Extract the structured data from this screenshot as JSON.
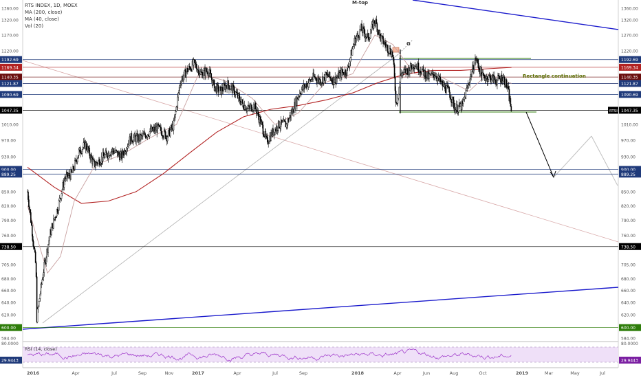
{
  "legend": {
    "symbol": "RTS INDEX, 1D, MOEX",
    "ma200": "MA (200, close)",
    "ma40": "MA (40, close)",
    "vol": "Vol (20)"
  },
  "annotations": {
    "mtop": "M-top",
    "g": "G",
    "rect": "Rectangle continuation"
  },
  "rsi": {
    "label": "RSI (14, close)",
    "upper": "80.0000",
    "value_label": "29.9443",
    "value": 29.9443,
    "upper_level": 70,
    "lower_level": 30
  },
  "colors": {
    "price": "#000000",
    "ma200": "#b22222",
    "ma40": "#c8a0a0",
    "trend_blue": "#1a1acc",
    "support_green": "#2e7d0a",
    "level_navy": "#1f3a7a",
    "rsi_line": "#9b30c8",
    "rsi_band": "#efe0f8"
  },
  "chart_data": {
    "type": "candlestick",
    "title": "RTS INDEX, 1D, MOEX",
    "y_scale": "log",
    "ylim": [
      584,
      1370
    ],
    "time_labels": [
      "2016",
      "Apr",
      "Jul",
      "Sep",
      "Nov",
      "2017",
      "Apr",
      "Jul",
      "Sep",
      "2018",
      "Apr",
      "Jun",
      "Aug",
      "Oct",
      "2019",
      "Mar",
      "May",
      "Jul"
    ],
    "y_ticks_right": [
      "1360.00",
      "1320.00",
      "1270.00",
      "1220.00",
      "1192.69",
      "1169.34",
      "1140.35",
      "1121.96",
      "1121.87",
      "1090.69",
      "1047.35",
      "1010.00",
      "970.00",
      "930.00",
      "900.00",
      "889.25",
      "850.00",
      "820.00",
      "790.00",
      "760.00",
      "738.50",
      "705.00",
      "680.00",
      "660.00",
      "640.00",
      "620.00",
      "600.00",
      "584.00"
    ],
    "y_ticks_left": [
      "1360.00",
      "1320.00",
      "1270.00",
      "1220.00",
      "1192.69",
      "1169.34",
      "1140.35",
      "1121.96",
      "1121.87",
      "1090.69",
      "1047.35",
      "1010.00",
      "970.00",
      "930.00",
      "900.00",
      "889.25",
      "850.00",
      "820.00",
      "790.00",
      "760.00",
      "738.50",
      "705.00",
      "680.00",
      "660.00",
      "640.00",
      "620.00",
      "600.00",
      "584.00"
    ],
    "price_path": [
      [
        "2016-01-01",
        850
      ],
      [
        "2016-01-20",
        700
      ],
      [
        "2016-01-22",
        615
      ],
      [
        "2016-02-05",
        690
      ],
      [
        "2016-02-20",
        760
      ],
      [
        "2016-03-10",
        820
      ],
      [
        "2016-03-25",
        880
      ],
      [
        "2016-04-10",
        890
      ],
      [
        "2016-04-25",
        940
      ],
      [
        "2016-05-10",
        960
      ],
      [
        "2016-05-30",
        910
      ],
      [
        "2016-06-20",
        930
      ],
      [
        "2016-07-10",
        945
      ],
      [
        "2016-07-30",
        930
      ],
      [
        "2016-08-20",
        975
      ],
      [
        "2016-09-10",
        975
      ],
      [
        "2016-09-30",
        990
      ],
      [
        "2016-10-20",
        1000
      ],
      [
        "2016-11-10",
        980
      ],
      [
        "2016-11-25",
        1010
      ],
      [
        "2016-12-10",
        1130
      ],
      [
        "2016-12-25",
        1160
      ],
      [
        "2017-01-10",
        1180
      ],
      [
        "2017-01-25",
        1150
      ],
      [
        "2017-02-10",
        1160
      ],
      [
        "2017-02-25",
        1110
      ],
      [
        "2017-03-10",
        1100
      ],
      [
        "2017-03-25",
        1120
      ],
      [
        "2017-04-10",
        1100
      ],
      [
        "2017-04-25",
        1070
      ],
      [
        "2017-05-10",
        1050
      ],
      [
        "2017-05-25",
        1060
      ],
      [
        "2017-06-10",
        1010
      ],
      [
        "2017-06-22",
        965
      ],
      [
        "2017-07-05",
        990
      ],
      [
        "2017-07-20",
        1010
      ],
      [
        "2017-08-05",
        1010
      ],
      [
        "2017-08-20",
        1050
      ],
      [
        "2017-09-05",
        1100
      ],
      [
        "2017-09-20",
        1120
      ],
      [
        "2017-10-05",
        1140
      ],
      [
        "2017-10-20",
        1130
      ],
      [
        "2017-11-05",
        1145
      ],
      [
        "2017-11-20",
        1130
      ],
      [
        "2017-12-05",
        1150
      ],
      [
        "2017-12-20",
        1160
      ],
      [
        "2018-01-05",
        1250
      ],
      [
        "2018-01-20",
        1290
      ],
      [
        "2018-02-05",
        1260
      ],
      [
        "2018-02-20",
        1320
      ],
      [
        "2018-03-05",
        1260
      ],
      [
        "2018-03-20",
        1230
      ],
      [
        "2018-04-01",
        1210
      ],
      [
        "2018-04-09",
        1060
      ],
      [
        "2018-04-20",
        1150
      ],
      [
        "2018-05-05",
        1160
      ],
      [
        "2018-05-20",
        1180
      ],
      [
        "2018-06-05",
        1160
      ],
      [
        "2018-06-20",
        1140
      ],
      [
        "2018-07-05",
        1150
      ],
      [
        "2018-07-20",
        1120
      ],
      [
        "2018-08-05",
        1100
      ],
      [
        "2018-08-20",
        1050
      ],
      [
        "2018-09-05",
        1060
      ],
      [
        "2018-09-20",
        1130
      ],
      [
        "2018-10-05",
        1195
      ],
      [
        "2018-10-20",
        1140
      ],
      [
        "2018-11-05",
        1140
      ],
      [
        "2018-11-20",
        1130
      ],
      [
        "2018-12-05",
        1140
      ],
      [
        "2018-12-15",
        1110
      ],
      [
        "2018-12-24",
        1047
      ]
    ],
    "ma200_path": [
      [
        "2016-01-01",
        905
      ],
      [
        "2016-03-01",
        860
      ],
      [
        "2016-05-01",
        825
      ],
      [
        "2016-07-01",
        830
      ],
      [
        "2016-09-01",
        850
      ],
      [
        "2016-11-01",
        890
      ],
      [
        "2017-01-01",
        940
      ],
      [
        "2017-03-01",
        990
      ],
      [
        "2017-05-01",
        1030
      ],
      [
        "2017-07-01",
        1050
      ],
      [
        "2017-09-01",
        1060
      ],
      [
        "2017-11-01",
        1075
      ],
      [
        "2018-01-01",
        1095
      ],
      [
        "2018-03-01",
        1125
      ],
      [
        "2018-05-01",
        1150
      ],
      [
        "2018-07-01",
        1160
      ],
      [
        "2018-09-01",
        1160
      ],
      [
        "2018-11-01",
        1165
      ],
      [
        "2018-12-24",
        1169
      ]
    ],
    "ma40_path": [
      [
        "2016-01-01",
        820
      ],
      [
        "2016-02-15",
        690
      ],
      [
        "2016-03-15",
        720
      ],
      [
        "2016-04-15",
        830
      ],
      [
        "2016-06-01",
        910
      ],
      [
        "2016-08-01",
        935
      ],
      [
        "2016-10-01",
        975
      ],
      [
        "2016-12-01",
        1010
      ],
      [
        "2017-01-20",
        1150
      ],
      [
        "2017-03-20",
        1130
      ],
      [
        "2017-05-20",
        1080
      ],
      [
        "2017-07-10",
        1010
      ],
      [
        "2017-09-01",
        1040
      ],
      [
        "2017-11-01",
        1125
      ],
      [
        "2018-01-01",
        1150
      ],
      [
        "2018-02-20",
        1270
      ],
      [
        "2018-04-01",
        1240
      ],
      [
        "2018-05-20",
        1150
      ],
      [
        "2018-07-20",
        1140
      ],
      [
        "2018-09-20",
        1100
      ],
      [
        "2018-11-01",
        1150
      ],
      [
        "2018-12-24",
        1122
      ]
    ],
    "levels": [
      {
        "value": 1192.69,
        "label": "1192.69",
        "color": "#1f3a7a",
        "style": "box"
      },
      {
        "value": 1169.34,
        "label": "1169.34",
        "color": "#b22222",
        "style": "box"
      },
      {
        "value": 1140.35,
        "label": "1140.35",
        "color": "#6a0d0d",
        "style": "box"
      },
      {
        "value": 1121.96,
        "label": "1121.96",
        "color": "#d8a8a8",
        "style": "box"
      },
      {
        "value": 1121.87,
        "label": "1121.87",
        "color": "#1f3a7a",
        "style": "box"
      },
      {
        "value": 1090.69,
        "label": "1090.69",
        "color": "#1f3a7a",
        "style": "box"
      },
      {
        "value": 1047.35,
        "label": "1047.35",
        "color": "#000000",
        "style": "box"
      },
      {
        "value": 900.0,
        "label": "900.00",
        "color": "#1f3a7a",
        "style": "box"
      },
      {
        "value": 889.25,
        "label": "889.25",
        "color": "#1f3a7a",
        "style": "box"
      },
      {
        "value": 738.5,
        "label": "738.50",
        "color": "#000000",
        "style": "box"
      },
      {
        "value": 600.0,
        "label": "600.00",
        "color": "#2e7d0a",
        "style": "box"
      }
    ],
    "current_price": 1047.35,
    "current_price_tag": "RTSI"
  }
}
